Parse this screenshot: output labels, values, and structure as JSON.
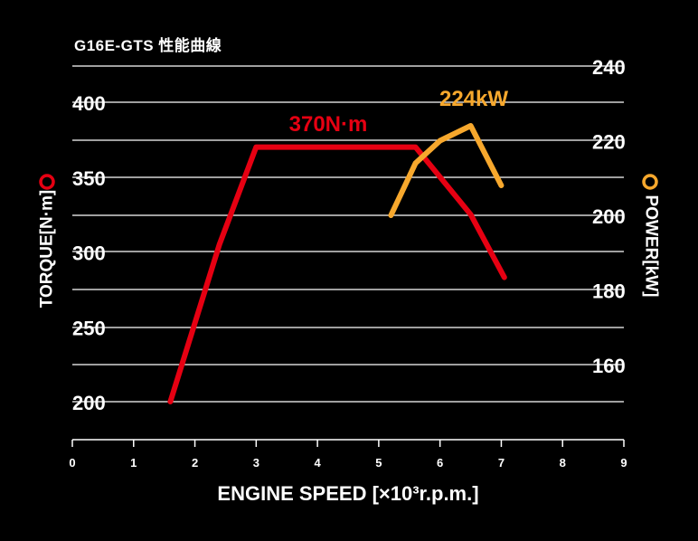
{
  "chart_data": {
    "type": "line",
    "title": "G16E-GTS 性能曲線",
    "xlabel": "ENGINE SPEED [×10³r.p.m.]",
    "xlim": [
      0,
      9
    ],
    "x_ticks": [
      "0",
      "1",
      "2",
      "3",
      "4",
      "5",
      "6",
      "7",
      "8",
      "9"
    ],
    "y_left": {
      "label": "TORQUE[N·m]",
      "ticks": [
        "200",
        "250",
        "300",
        "350",
        "400"
      ],
      "ylim": [
        180,
        415
      ]
    },
    "y_right": {
      "label": "POWER[kW]",
      "ticks": [
        "160",
        "180",
        "200",
        "220",
        "240"
      ],
      "ylim": [
        150,
        243
      ]
    },
    "series": [
      {
        "axis": "left",
        "color": "#e60012",
        "x": [
          1.6,
          2.4,
          3.0,
          5.6,
          6.5,
          7.05
        ],
        "y": [
          200,
          305,
          370,
          370,
          325,
          283
        ]
      },
      {
        "axis": "right",
        "color": "#f7a82d",
        "x": [
          5.2,
          5.6,
          6.0,
          6.5,
          7.0
        ],
        "y": [
          200,
          214,
          220,
          224,
          208
        ]
      }
    ],
    "annotations": [
      {
        "text": "370N·m",
        "color": "#e60012"
      },
      {
        "text": "224kW",
        "color": "#f7a82d"
      }
    ],
    "grid": true
  }
}
